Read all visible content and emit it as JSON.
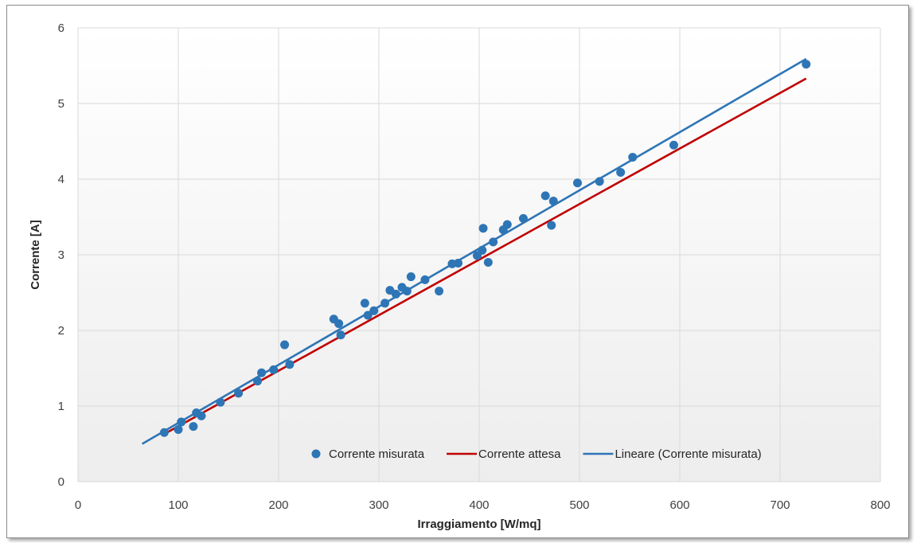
{
  "chart_data": {
    "type": "scatter",
    "title": "",
    "xlabel": "Irraggiamento [W/mq]",
    "ylabel": "Corrente [A]",
    "xlim": [
      0,
      800
    ],
    "ylim": [
      0,
      6
    ],
    "x_ticks": [
      0,
      100,
      200,
      300,
      400,
      500,
      600,
      700,
      800
    ],
    "y_ticks": [
      0,
      1,
      2,
      3,
      4,
      5,
      6
    ],
    "grid": true,
    "legend_position": "bottom-right",
    "series": [
      {
        "name": "Corrente misurata",
        "kind": "scatter",
        "color": "#2e75b6",
        "points": [
          [
            86,
            0.65
          ],
          [
            100,
            0.69
          ],
          [
            103,
            0.79
          ],
          [
            115,
            0.73
          ],
          [
            118,
            0.91
          ],
          [
            123,
            0.87
          ],
          [
            142,
            1.05
          ],
          [
            160,
            1.17
          ],
          [
            179,
            1.33
          ],
          [
            183,
            1.44
          ],
          [
            195,
            1.48
          ],
          [
            206,
            1.81
          ],
          [
            211,
            1.55
          ],
          [
            255,
            2.15
          ],
          [
            260,
            2.09
          ],
          [
            262,
            1.94
          ],
          [
            286,
            2.36
          ],
          [
            289,
            2.2
          ],
          [
            295,
            2.26
          ],
          [
            306,
            2.36
          ],
          [
            311,
            2.53
          ],
          [
            317,
            2.48
          ],
          [
            323,
            2.57
          ],
          [
            328,
            2.52
          ],
          [
            332,
            2.71
          ],
          [
            346,
            2.67
          ],
          [
            360,
            2.52
          ],
          [
            373,
            2.88
          ],
          [
            379,
            2.89
          ],
          [
            398,
            2.99
          ],
          [
            403,
            3.06
          ],
          [
            404,
            3.35
          ],
          [
            409,
            2.9
          ],
          [
            414,
            3.17
          ],
          [
            424,
            3.33
          ],
          [
            428,
            3.4
          ],
          [
            444,
            3.48
          ],
          [
            466,
            3.78
          ],
          [
            472,
            3.39
          ],
          [
            474,
            3.71
          ],
          [
            498,
            3.95
          ],
          [
            520,
            3.97
          ],
          [
            541,
            4.09
          ],
          [
            553,
            4.29
          ],
          [
            594,
            4.45
          ],
          [
            726,
            5.52
          ]
        ]
      },
      {
        "name": "Corrente attesa",
        "kind": "line",
        "color": "#c00000",
        "points": [
          [
            86,
            0.63
          ],
          [
            726,
            5.33
          ]
        ]
      },
      {
        "name": "Lineare (Corrente misurata)",
        "kind": "line",
        "color": "#2e75b6",
        "points": [
          [
            64,
            0.5
          ],
          [
            726,
            5.59
          ]
        ]
      }
    ]
  }
}
